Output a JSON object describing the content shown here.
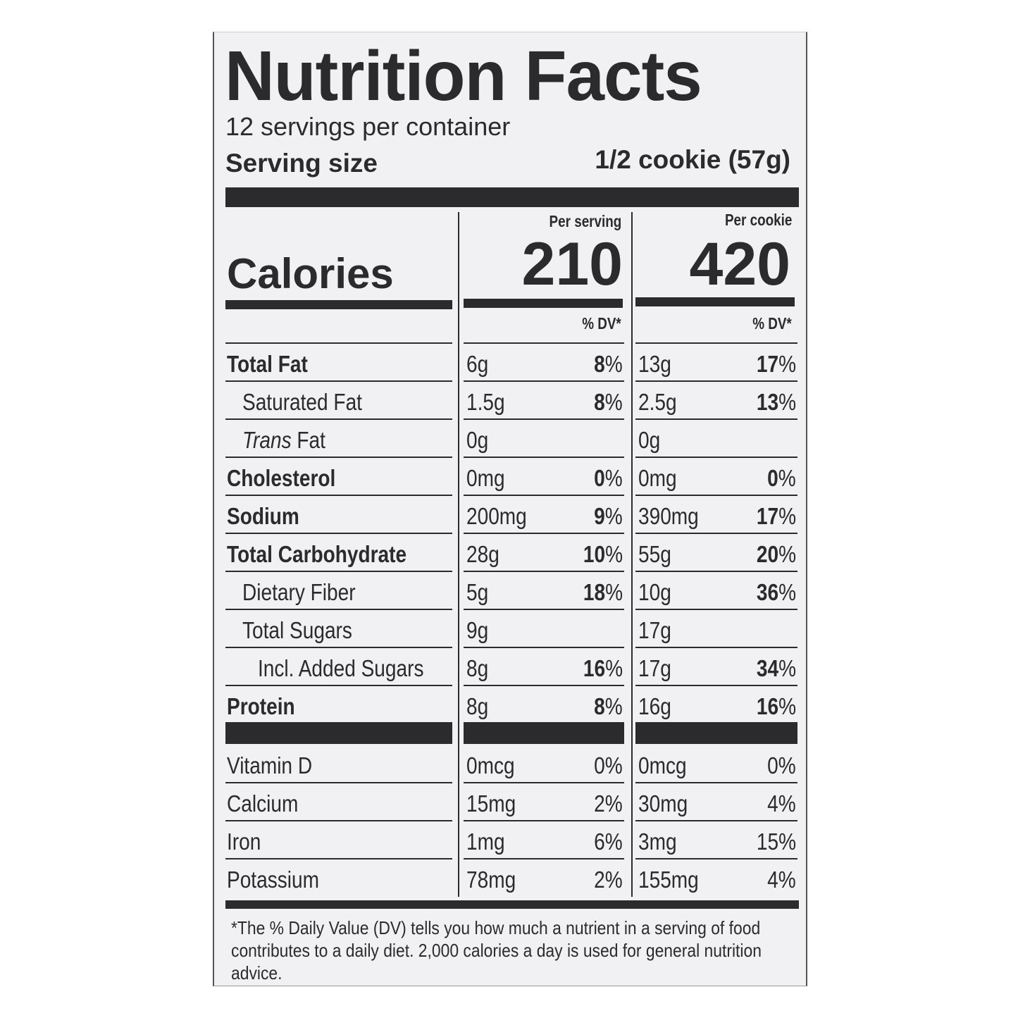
{
  "title": "Nutrition Facts",
  "servings_per_container": "12 servings per container",
  "serving_size": {
    "label": "Serving size",
    "value": "1/2 cookie (57g)"
  },
  "columns": [
    {
      "header": "Per serving",
      "calories": "210",
      "dv_header": "% DV*"
    },
    {
      "header": "Per cookie",
      "calories": "420",
      "dv_header": "% DV*"
    }
  ],
  "calories_label": "Calories",
  "nutrients": [
    {
      "name": "Total Fat",
      "bold": true,
      "indent": 0,
      "values": [
        [
          "6g",
          "8%"
        ],
        [
          "13g",
          "17%"
        ]
      ]
    },
    {
      "name": "Saturated Fat",
      "bold": false,
      "indent": 1,
      "values": [
        [
          "1.5g",
          "8%"
        ],
        [
          "2.5g",
          "13%"
        ]
      ]
    },
    {
      "name_italic": "Trans",
      "name": " Fat",
      "bold": false,
      "indent": 1,
      "values": [
        [
          "0g",
          ""
        ],
        [
          "0g",
          ""
        ]
      ]
    },
    {
      "name": "Cholesterol",
      "bold": true,
      "indent": 0,
      "values": [
        [
          "0mg",
          "0%"
        ],
        [
          "0mg",
          "0%"
        ]
      ]
    },
    {
      "name": "Sodium",
      "bold": true,
      "indent": 0,
      "values": [
        [
          "200mg",
          "9%"
        ],
        [
          "390mg",
          "17%"
        ]
      ]
    },
    {
      "name": "Total Carbohydrate",
      "bold": true,
      "indent": 0,
      "values": [
        [
          "28g",
          "10%"
        ],
        [
          "55g",
          "20%"
        ]
      ]
    },
    {
      "name": "Dietary Fiber",
      "bold": false,
      "indent": 1,
      "values": [
        [
          "5g",
          "18%"
        ],
        [
          "10g",
          "36%"
        ]
      ]
    },
    {
      "name": "Total Sugars",
      "bold": false,
      "indent": 1,
      "values": [
        [
          "9g",
          ""
        ],
        [
          "17g",
          ""
        ]
      ]
    },
    {
      "name": "Incl. Added Sugars",
      "bold": false,
      "indent": 2,
      "values": [
        [
          "8g",
          "16%"
        ],
        [
          "17g",
          "34%"
        ]
      ]
    },
    {
      "name": "Protein",
      "bold": true,
      "indent": 0,
      "values": [
        [
          "8g",
          "8%"
        ],
        [
          "16g",
          "16%"
        ]
      ]
    }
  ],
  "vitamins": [
    {
      "name": "Vitamin D",
      "values": [
        [
          "0mcg",
          "0%"
        ],
        [
          "0mcg",
          "0%"
        ]
      ]
    },
    {
      "name": "Calcium",
      "values": [
        [
          "15mg",
          "2%"
        ],
        [
          "30mg",
          "4%"
        ]
      ]
    },
    {
      "name": "Iron",
      "values": [
        [
          "1mg",
          "6%"
        ],
        [
          "3mg",
          "15%"
        ]
      ]
    },
    {
      "name": "Potassium",
      "values": [
        [
          "78mg",
          "2%"
        ],
        [
          "155mg",
          "4%"
        ]
      ]
    }
  ],
  "footnote": "*The % Daily Value (DV) tells you how much a nutrient in a serving of food contributes to a daily diet. 2,000 calories a day is used for general nutrition advice."
}
